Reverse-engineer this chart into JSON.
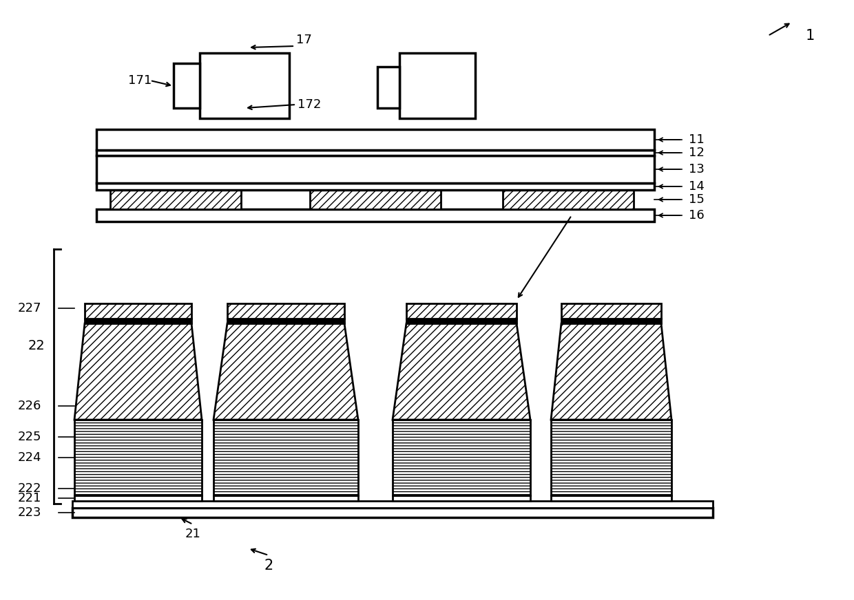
{
  "bg_color": "#ffffff",
  "line_color": "#000000",
  "hatch_diag": "/",
  "hatch_horiz": "-",
  "lw_thick": 3.5,
  "lw_thin": 1.5,
  "fontsize_label": 13,
  "fontsize_ref": 13
}
